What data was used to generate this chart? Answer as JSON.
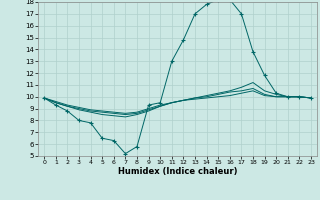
{
  "title": "",
  "xlabel": "Humidex (Indice chaleur)",
  "ylabel": "",
  "bg_color": "#cce8e4",
  "grid_color": "#b0d0cc",
  "line_color": "#006666",
  "xlim": [
    -0.5,
    23.5
  ],
  "ylim": [
    5,
    18
  ],
  "xticks": [
    0,
    1,
    2,
    3,
    4,
    5,
    6,
    7,
    8,
    9,
    10,
    11,
    12,
    13,
    14,
    15,
    16,
    17,
    18,
    19,
    20,
    21,
    22,
    23
  ],
  "yticks": [
    5,
    6,
    7,
    8,
    9,
    10,
    11,
    12,
    13,
    14,
    15,
    16,
    17,
    18
  ],
  "lines": [
    {
      "x": [
        0,
        1,
        2,
        3,
        4,
        5,
        6,
        7,
        8,
        9,
        10,
        11,
        12,
        13,
        14,
        15,
        16,
        17,
        18,
        19,
        20,
        21,
        22,
        23
      ],
      "y": [
        9.9,
        9.3,
        8.8,
        8.0,
        7.8,
        6.5,
        6.3,
        5.2,
        5.8,
        9.3,
        9.5,
        13.0,
        14.8,
        17.0,
        17.8,
        18.2,
        18.2,
        17.0,
        13.8,
        11.8,
        10.3,
        10.0,
        10.0,
        9.9
      ],
      "marker": "+"
    },
    {
      "x": [
        0,
        1,
        2,
        3,
        4,
        5,
        6,
        7,
        8,
        9,
        10,
        11,
        12,
        13,
        14,
        15,
        16,
        17,
        18,
        19,
        20,
        21,
        22,
        23
      ],
      "y": [
        9.9,
        9.5,
        9.2,
        8.9,
        8.7,
        8.5,
        8.4,
        8.3,
        8.5,
        8.8,
        9.2,
        9.5,
        9.7,
        9.9,
        10.1,
        10.3,
        10.5,
        10.8,
        11.2,
        10.5,
        10.2,
        10.0,
        10.0,
        9.9
      ],
      "marker": null
    },
    {
      "x": [
        0,
        1,
        2,
        3,
        4,
        5,
        6,
        7,
        8,
        9,
        10,
        11,
        12,
        13,
        14,
        15,
        16,
        17,
        18,
        19,
        20,
        21,
        22,
        23
      ],
      "y": [
        9.9,
        9.5,
        9.2,
        9.0,
        8.8,
        8.7,
        8.6,
        8.5,
        8.6,
        8.9,
        9.2,
        9.5,
        9.7,
        9.9,
        10.0,
        10.2,
        10.4,
        10.5,
        10.7,
        10.2,
        10.0,
        10.0,
        10.0,
        9.9
      ],
      "marker": null
    },
    {
      "x": [
        0,
        1,
        2,
        3,
        4,
        5,
        6,
        7,
        8,
        9,
        10,
        11,
        12,
        13,
        14,
        15,
        16,
        17,
        18,
        19,
        20,
        21,
        22,
        23
      ],
      "y": [
        9.9,
        9.6,
        9.3,
        9.1,
        8.9,
        8.8,
        8.7,
        8.6,
        8.7,
        9.0,
        9.3,
        9.5,
        9.7,
        9.8,
        9.9,
        10.0,
        10.1,
        10.3,
        10.5,
        10.1,
        10.0,
        10.0,
        10.0,
        9.9
      ],
      "marker": null
    }
  ]
}
